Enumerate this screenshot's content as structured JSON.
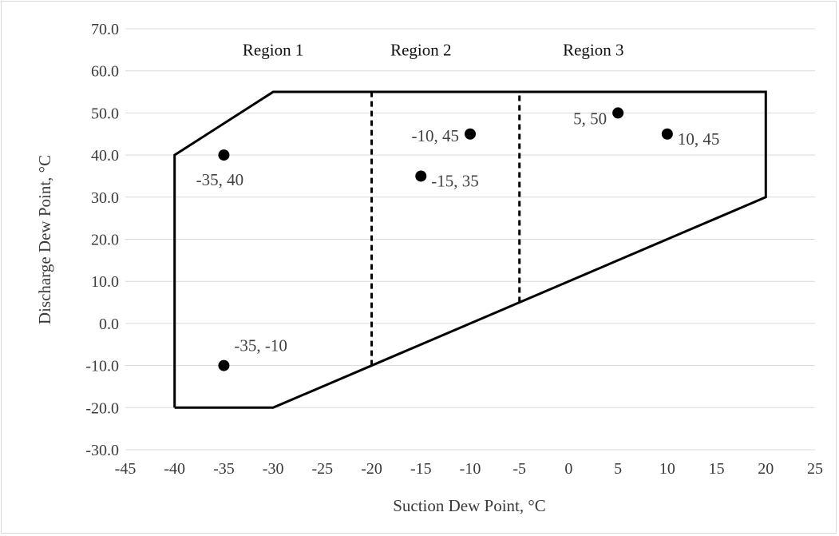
{
  "chart_data": {
    "type": "scatter",
    "title": "",
    "xlabel": "Suction Dew Point, °C",
    "ylabel": "Discharge Dew Point, °C",
    "xlim": [
      -45,
      25
    ],
    "ylim": [
      -30,
      70
    ],
    "x_ticks": [
      -45,
      -40,
      -35,
      -30,
      -25,
      -20,
      -15,
      -10,
      -5,
      0,
      5,
      10,
      15,
      20,
      25
    ],
    "x_tick_labels": [
      "-45",
      "-40",
      "-35",
      "-30",
      "-25",
      "-20",
      "-15",
      "-10",
      "-5",
      "0",
      "5",
      "10",
      "15",
      "20",
      "25"
    ],
    "y_ticks": [
      -30,
      -20,
      -10,
      0,
      10,
      20,
      30,
      40,
      50,
      60,
      70
    ],
    "y_tick_labels": [
      "-30.0",
      "-20.0",
      "-10.0",
      "0.0",
      "10.0",
      "20.0",
      "30.0",
      "40.0",
      "50.0",
      "60.0",
      "70.0"
    ],
    "grid": "horizontal",
    "envelope": {
      "color": "#000000",
      "points": [
        [
          -40,
          -20
        ],
        [
          -40,
          40
        ],
        [
          -30,
          55
        ],
        [
          20,
          55
        ],
        [
          20,
          30
        ],
        [
          -30,
          -20
        ],
        [
          -40,
          -20
        ]
      ]
    },
    "region_dividers": [
      {
        "x": -20,
        "y_from": -10,
        "y_to": 55
      },
      {
        "x": -5,
        "y_from": 5,
        "y_to": 55
      }
    ],
    "regions": [
      {
        "label": "Region 1",
        "x": -30,
        "y": 65
      },
      {
        "label": "Region 2",
        "x": -15,
        "y": 65
      },
      {
        "label": "Region 3",
        "x": 2.5,
        "y": 65
      }
    ],
    "points": [
      {
        "x": -35,
        "y": 40,
        "label": "-35, 40",
        "anchor": "below"
      },
      {
        "x": -35,
        "y": -10,
        "label": "-35, -10",
        "anchor": "above-right"
      },
      {
        "x": -15,
        "y": 35,
        "label": "-15, 35",
        "anchor": "right"
      },
      {
        "x": -10,
        "y": 45,
        "label": "-10, 45",
        "anchor": "left"
      },
      {
        "x": 5,
        "y": 50,
        "label": "5, 50",
        "anchor": "below-left"
      },
      {
        "x": 10,
        "y": 45,
        "label": "10, 45",
        "anchor": "right"
      }
    ],
    "marker_color": "#000000"
  }
}
